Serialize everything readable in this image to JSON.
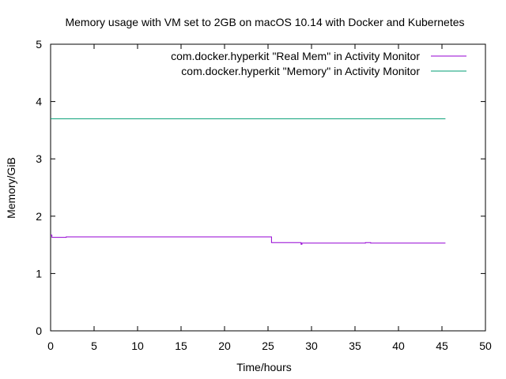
{
  "chart_data": {
    "type": "line",
    "title": "Memory usage with VM set to 2GB on macOS 10.14 with Docker and Kubernetes",
    "xlabel": "Time/hours",
    "ylabel": "Memory/GiB",
    "xlim": [
      0,
      50
    ],
    "ylim": [
      0,
      5
    ],
    "xticks": [
      "0",
      "5",
      "10",
      "15",
      "20",
      "25",
      "30",
      "35",
      "40",
      "45",
      "50"
    ],
    "yticks": [
      "0",
      "1",
      "2",
      "3",
      "4",
      "5"
    ],
    "grid": false,
    "legend_position": "top-right",
    "series": [
      {
        "name": "com.docker.hyperkit \"Real Mem\" in Activity Monitor",
        "color": "#9400d3",
        "step": true,
        "points": [
          [
            0.0,
            1.67
          ],
          [
            0.15,
            1.63
          ],
          [
            1.8,
            1.64
          ],
          [
            25.4,
            1.54
          ],
          [
            28.8,
            1.51
          ],
          [
            28.9,
            1.53
          ],
          [
            36.2,
            1.54
          ],
          [
            36.8,
            1.53
          ],
          [
            45.4,
            1.53
          ]
        ]
      },
      {
        "name": "com.docker.hyperkit \"Memory\" in Activity Monitor",
        "color": "#009e73",
        "step": false,
        "points": [
          [
            0.0,
            3.7
          ],
          [
            45.4,
            3.7
          ]
        ]
      }
    ]
  }
}
